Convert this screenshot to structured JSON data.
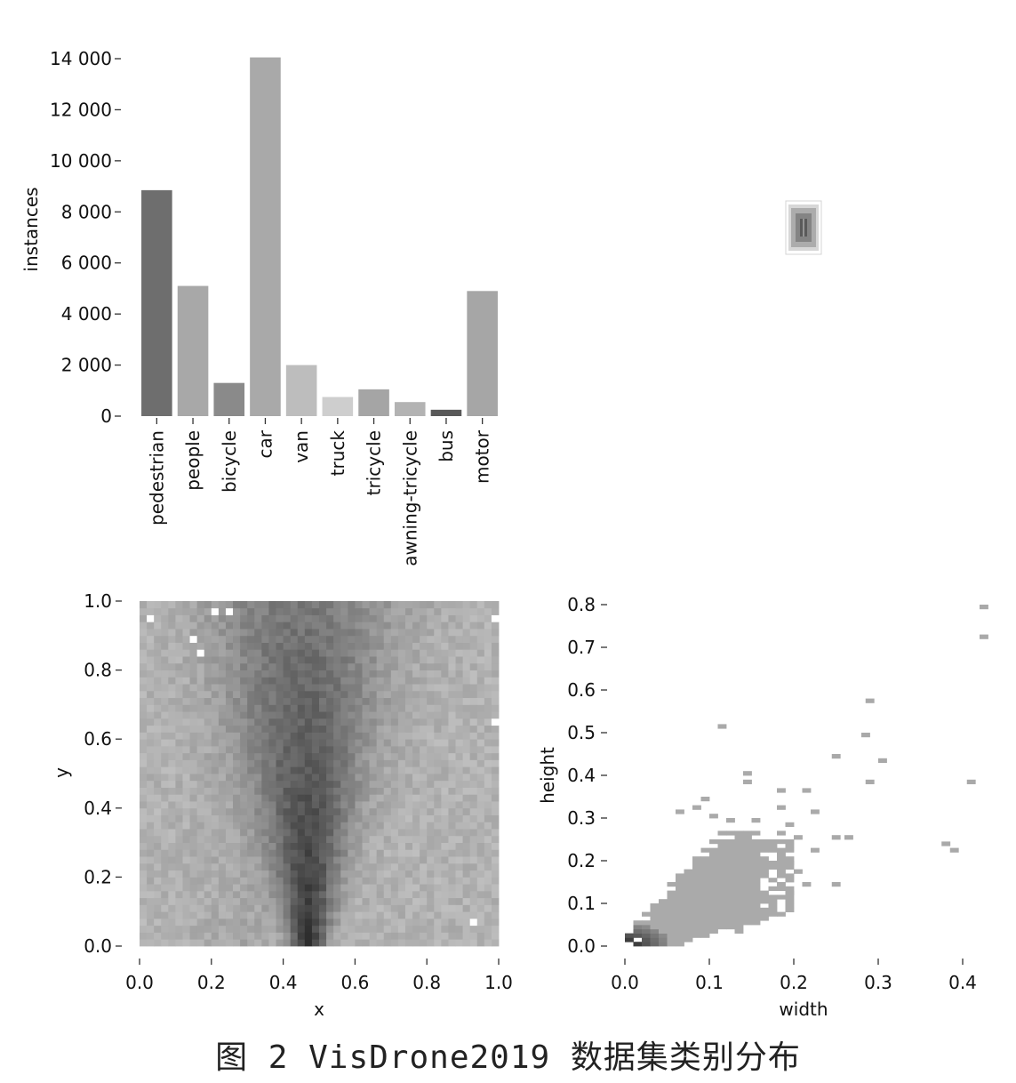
{
  "caption": "图 2  VisDrone2019 数据集类别分布",
  "chart_data": [
    {
      "type": "bar",
      "ylabel": "instances",
      "xlabel": "",
      "ylim": [
        0,
        14000
      ],
      "yticks": [
        "0",
        "2 000",
        "4 000",
        "6 000",
        "8 000",
        "10 000",
        "12 000",
        "14 000"
      ],
      "ytick_values": [
        0,
        2000,
        4000,
        6000,
        8000,
        10000,
        12000,
        14000
      ],
      "categories": [
        "pedestrian",
        "people",
        "bicycle",
        "car",
        "van",
        "truck",
        "tricycle",
        "awning-tricycle",
        "bus",
        "motor"
      ],
      "values": [
        8850,
        5100,
        1300,
        14050,
        2000,
        750,
        1050,
        550,
        250,
        4900
      ],
      "colors": [
        "#6e6e6e",
        "#a8a8a8",
        "#8a8a8a",
        "#a9a9a9",
        "#bdbdbd",
        "#cecece",
        "#a5a5a5",
        "#b3b3b3",
        "#595959",
        "#a6a6a6"
      ],
      "grid": false
    },
    {
      "type": "heatmap",
      "xlabel": "x",
      "ylabel": "y",
      "xlim": [
        0,
        1
      ],
      "ylim": [
        0,
        1
      ],
      "xticks": [
        "0.0",
        "0.2",
        "0.4",
        "0.6",
        "0.8",
        "1.0"
      ],
      "xtick_values": [
        0,
        0.2,
        0.4,
        0.6,
        0.8,
        1.0
      ],
      "yticks": [
        "0.0",
        "0.2",
        "0.4",
        "0.6",
        "0.8",
        "1.0"
      ],
      "ytick_values": [
        0,
        0.2,
        0.4,
        0.6,
        0.8,
        1.0
      ],
      "bins": 50,
      "description_density": "densest near x≈0.45–0.5, y≈0–0.5, forming a V shape widening upward",
      "grid": false
    },
    {
      "type": "heatmap",
      "xlabel": "width",
      "ylabel": "height",
      "xlim": [
        0,
        0.43
      ],
      "ylim": [
        0,
        0.82
      ],
      "xticks": [
        "0.0",
        "0.1",
        "0.2",
        "0.3",
        "0.4"
      ],
      "xtick_values": [
        0,
        0.1,
        0.2,
        0.3,
        0.4
      ],
      "yticks": [
        "0.0",
        "0.1",
        "0.2",
        "0.3",
        "0.4",
        "0.5",
        "0.6",
        "0.7",
        "0.8"
      ],
      "ytick_values": [
        0,
        0.1,
        0.2,
        0.3,
        0.4,
        0.5,
        0.6,
        0.7,
        0.8
      ],
      "outliers": [
        [
          0.42,
          0.79
        ],
        [
          0.42,
          0.72
        ],
        [
          0.285,
          0.57
        ],
        [
          0.28,
          0.49
        ],
        [
          0.3,
          0.43
        ],
        [
          0.11,
          0.51
        ],
        [
          0.245,
          0.44
        ],
        [
          0.405,
          0.38
        ],
        [
          0.385,
          0.22
        ],
        [
          0.375,
          0.235
        ],
        [
          0.285,
          0.38
        ],
        [
          0.245,
          0.25
        ],
        [
          0.26,
          0.25
        ],
        [
          0.245,
          0.14
        ]
      ],
      "grid": false
    }
  ],
  "box_overlay": {
    "shape": "nested-rectangles-icon"
  }
}
